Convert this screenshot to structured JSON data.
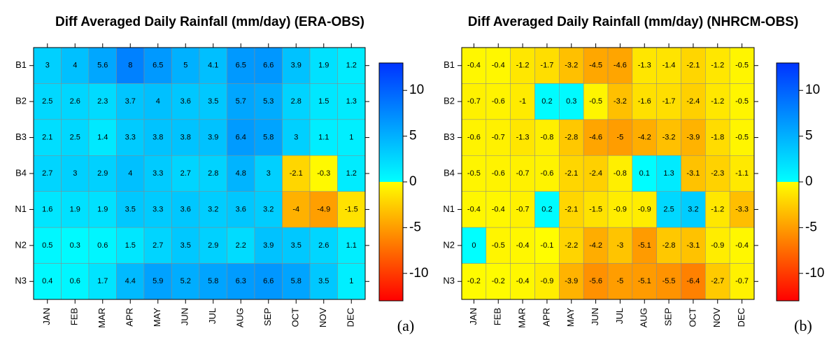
{
  "chart_data": [
    {
      "type": "heatmap",
      "title": "Diff Averaged Daily Rainfall (mm/day) (ERA-OBS)",
      "panel_label": "(a)",
      "rows": [
        "B1",
        "B2",
        "B3",
        "B4",
        "N1",
        "N2",
        "N3"
      ],
      "columns": [
        "JAN",
        "FEB",
        "MAR",
        "APR",
        "MAY",
        "JUN",
        "JUL",
        "AUG",
        "SEP",
        "OCT",
        "NOV",
        "DEC"
      ],
      "values": [
        [
          3,
          4,
          5.6,
          8,
          6.5,
          5,
          4.1,
          6.5,
          6.6,
          3.9,
          1.9,
          1.2
        ],
        [
          2.5,
          2.6,
          2.3,
          3.7,
          4,
          3.6,
          3.5,
          5.7,
          5.3,
          2.8,
          1.5,
          1.3
        ],
        [
          2.1,
          2.5,
          1.4,
          3.3,
          3.8,
          3.8,
          3.9,
          6.4,
          5.8,
          3,
          1.1,
          1
        ],
        [
          2.7,
          3,
          2.9,
          4,
          3.3,
          2.7,
          2.8,
          4.8,
          3,
          -2.1,
          -0.3,
          1.2
        ],
        [
          1.6,
          1.9,
          1.9,
          3.5,
          3.3,
          3.6,
          3.2,
          3.6,
          3.2,
          -4,
          -4.9,
          -1.5
        ],
        [
          0.5,
          0.3,
          0.6,
          1.5,
          2.7,
          3.5,
          2.9,
          2.2,
          3.9,
          3.5,
          2.6,
          1.1
        ],
        [
          0.4,
          0.6,
          1.7,
          4.4,
          5.9,
          5.2,
          5.8,
          6.3,
          6.6,
          5.8,
          3.5,
          1
        ]
      ],
      "zlim": [
        -13,
        13
      ],
      "zticks": [
        -10,
        -5,
        0,
        5,
        10
      ],
      "colormap": {
        "negative": [
          "#ffff00",
          "#ff0000"
        ],
        "positive": [
          "#00ffff",
          "#0033ff"
        ]
      }
    },
    {
      "type": "heatmap",
      "title": "Diff Averaged Daily Rainfall (mm/day) (NHRCM-OBS)",
      "panel_label": "(b)",
      "rows": [
        "B1",
        "B2",
        "B3",
        "B4",
        "N1",
        "N2",
        "N3"
      ],
      "columns": [
        "JAN",
        "FEB",
        "MAR",
        "APR",
        "MAY",
        "JUN",
        "JUL",
        "AUG",
        "SEP",
        "OCT",
        "NOV",
        "DEC"
      ],
      "values": [
        [
          -0.4,
          -0.4,
          -1.2,
          -1.7,
          -3.2,
          -4.5,
          -4.6,
          -1.3,
          -1.4,
          -2.1,
          -1.2,
          -0.5
        ],
        [
          -0.7,
          -0.6,
          -1,
          0.2,
          0.3,
          -0.5,
          -3.2,
          -1.6,
          -1.7,
          -2.4,
          -1.2,
          -0.5
        ],
        [
          -0.6,
          -0.7,
          -1.3,
          -0.8,
          -2.8,
          -4.6,
          -5,
          -4.2,
          -3.2,
          -3.9,
          -1.8,
          -0.5
        ],
        [
          -0.5,
          -0.6,
          -0.7,
          -0.6,
          -2.1,
          -2.4,
          -0.8,
          0.1,
          1.3,
          -3.1,
          -2.3,
          -1.1
        ],
        [
          -0.4,
          -0.4,
          -0.7,
          0.2,
          -2.1,
          -1.5,
          -0.9,
          -0.9,
          2.5,
          3.2,
          -1.2,
          -3.3
        ],
        [
          0,
          -0.5,
          -0.4,
          -0.1,
          -2.2,
          -4.2,
          -3,
          -5.1,
          -2.8,
          -3.1,
          -0.9,
          -0.4
        ],
        [
          -0.2,
          -0.2,
          -0.4,
          -0.9,
          -3.9,
          -5.6,
          -5,
          -5.1,
          -5.5,
          -6.4,
          -2.7,
          -0.7
        ]
      ],
      "zlim": [
        -13,
        13
      ],
      "zticks": [
        -10,
        -5,
        0,
        5,
        10
      ],
      "colormap": {
        "negative": [
          "#ffff00",
          "#ff0000"
        ],
        "positive": [
          "#00ffff",
          "#0033ff"
        ]
      }
    }
  ]
}
